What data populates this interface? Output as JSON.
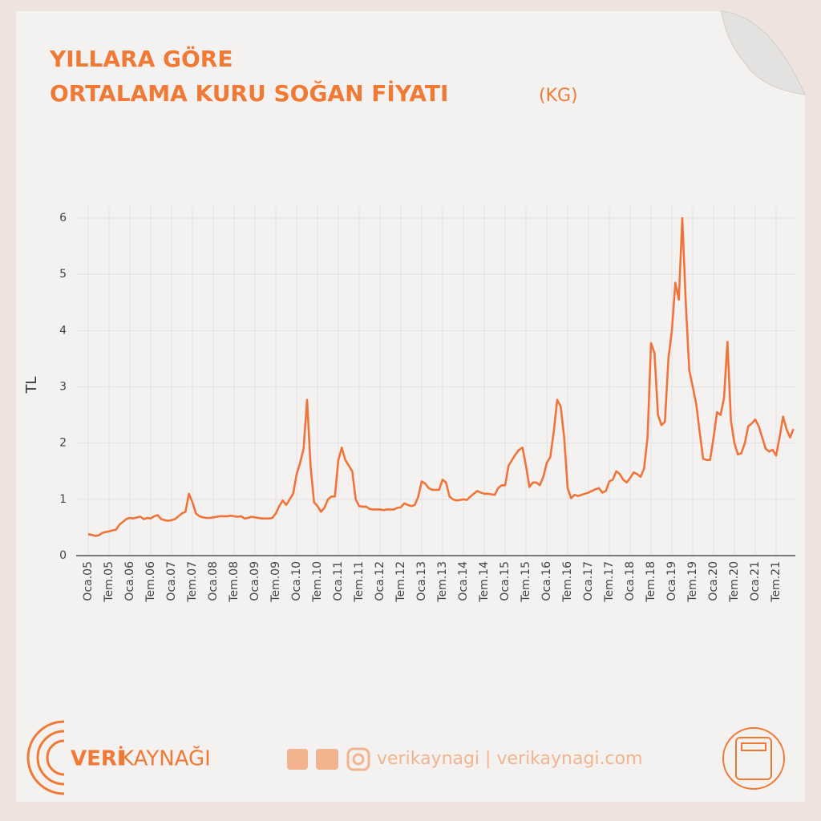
{
  "chart_data": {
    "type": "line",
    "title": [
      "YILLARA GÖRE",
      "ORTALAMA KURU SOĞAN FİYATI"
    ],
    "unit": "(KG)",
    "ylabel": "TL",
    "color": "#f0743a",
    "grid": true,
    "ylim": [
      0,
      6.2
    ],
    "yticks": [
      0,
      1,
      2,
      3,
      4,
      5,
      6
    ],
    "categories": [
      "Oca.05",
      null,
      null,
      null,
      null,
      null,
      "Tem.05",
      null,
      null,
      null,
      null,
      null,
      "Oca.06",
      null,
      null,
      null,
      null,
      null,
      "Tem.06",
      null,
      null,
      null,
      null,
      null,
      "Oca.07",
      null,
      null,
      null,
      null,
      null,
      "Tem.07",
      null,
      null,
      null,
      null,
      null,
      "Oca.08",
      null,
      null,
      null,
      null,
      null,
      "Tem.08",
      null,
      null,
      null,
      null,
      null,
      "Oca.09",
      null,
      null,
      null,
      null,
      null,
      "Tem.09",
      null,
      null,
      null,
      null,
      null,
      "Oca.10",
      null,
      null,
      null,
      null,
      null,
      "Tem.10",
      null,
      null,
      null,
      null,
      null,
      "Oca.11",
      null,
      null,
      null,
      null,
      null,
      "Tem.11",
      null,
      null,
      null,
      null,
      null,
      "Oca.12",
      null,
      null,
      null,
      null,
      null,
      "Tem.12",
      null,
      null,
      null,
      null,
      null,
      "Oca.13",
      null,
      null,
      null,
      null,
      null,
      "Tem.13",
      null,
      null,
      null,
      null,
      null,
      "Oca.14",
      null,
      null,
      null,
      null,
      null,
      "Tem.14",
      null,
      null,
      null,
      null,
      null,
      "Oca.15",
      null,
      null,
      null,
      null,
      null,
      "Tem.15",
      null,
      null,
      null,
      null,
      null,
      "Oca.16",
      null,
      null,
      null,
      null,
      null,
      "Tem.16",
      null,
      null,
      null,
      null,
      null,
      "Oca.17",
      null,
      null,
      null,
      null,
      null,
      "Tem.17",
      null,
      null,
      null,
      null,
      null,
      "Oca.18",
      null,
      null,
      null,
      null,
      null,
      "Tem.18",
      null,
      null,
      null,
      null,
      null,
      "Oca.19",
      null,
      null,
      null,
      null,
      null,
      "Tem.19",
      null,
      null,
      null,
      null,
      null,
      "Oca.20",
      null,
      null,
      null,
      null,
      null,
      "Tem.20",
      null,
      null,
      null,
      null,
      null,
      "Oca.21",
      null,
      null,
      null,
      null,
      null,
      "Tem.21",
      null,
      null,
      null,
      null,
      null
    ],
    "values": [
      0.38,
      0.37,
      0.35,
      0.36,
      0.4,
      0.42,
      0.43,
      0.45,
      0.46,
      0.55,
      0.6,
      0.65,
      0.67,
      0.66,
      0.68,
      0.69,
      0.65,
      0.67,
      0.66,
      0.7,
      0.72,
      0.65,
      0.63,
      0.62,
      0.63,
      0.65,
      0.7,
      0.75,
      0.78,
      1.1,
      0.95,
      0.75,
      0.7,
      0.68,
      0.67,
      0.67,
      0.68,
      0.69,
      0.7,
      0.7,
      0.7,
      0.71,
      0.7,
      0.69,
      0.7,
      0.66,
      0.67,
      0.69,
      0.68,
      0.67,
      0.66,
      0.66,
      0.66,
      0.67,
      0.75,
      0.88,
      0.98,
      0.9,
      1.0,
      1.1,
      1.45,
      1.65,
      1.9,
      2.77,
      1.6,
      0.95,
      0.88,
      0.78,
      0.85,
      1.0,
      1.05,
      1.05,
      1.7,
      1.92,
      1.7,
      1.6,
      1.5,
      1.0,
      0.88,
      0.87,
      0.87,
      0.83,
      0.82,
      0.82,
      0.82,
      0.81,
      0.82,
      0.82,
      0.82,
      0.85,
      0.86,
      0.93,
      0.9,
      0.88,
      0.9,
      1.05,
      1.32,
      1.28,
      1.2,
      1.17,
      1.17,
      1.17,
      1.35,
      1.3,
      1.05,
      1.0,
      0.98,
      0.99,
      1.0,
      0.99,
      1.05,
      1.1,
      1.15,
      1.12,
      1.1,
      1.1,
      1.09,
      1.08,
      1.2,
      1.25,
      1.25,
      1.6,
      1.7,
      1.8,
      1.88,
      1.92,
      1.6,
      1.22,
      1.3,
      1.3,
      1.25,
      1.4,
      1.65,
      1.75,
      2.2,
      2.77,
      2.65,
      2.1,
      1.2,
      1.02,
      1.08,
      1.06,
      1.08,
      1.1,
      1.12,
      1.15,
      1.18,
      1.2,
      1.12,
      1.15,
      1.32,
      1.35,
      1.5,
      1.45,
      1.35,
      1.3,
      1.38,
      1.48,
      1.45,
      1.4,
      1.55,
      2.1,
      3.78,
      3.6,
      2.5,
      2.32,
      2.38,
      3.5,
      4.0,
      4.85,
      4.55,
      6.0,
      4.5,
      3.3,
      3.0,
      2.7,
      2.2,
      1.72,
      1.7,
      1.7,
      2.1,
      2.55,
      2.5,
      2.8,
      3.8,
      2.4,
      2.0,
      1.8,
      1.82,
      2.0,
      2.3,
      2.35,
      2.42,
      2.3,
      2.1,
      1.9,
      1.85,
      1.88,
      1.78,
      2.1,
      2.47,
      2.25,
      2.1,
      2.25
    ]
  },
  "footer": {
    "brand_1": "VERİ",
    "brand_2": "KAYNAĞI",
    "social": "verikaynagi | verikaynagi.com"
  }
}
